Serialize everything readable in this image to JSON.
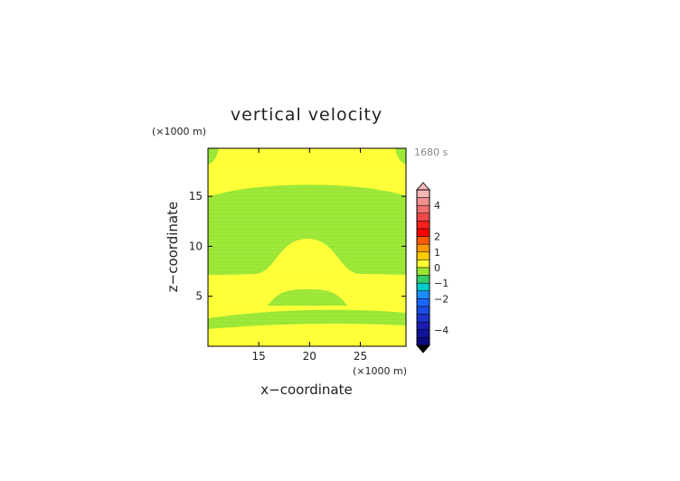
{
  "chart_data": {
    "type": "heatmap",
    "title": "vertical velocity",
    "time_label": "1680 s",
    "xlabel": "x−coordinate",
    "ylabel": "z−coordinate",
    "x_unit": "(×1000 m)",
    "y_unit": "(×1000 m)",
    "xlim": [
      10,
      29.5
    ],
    "ylim": [
      0,
      19.8
    ],
    "x_ticks": [
      15,
      20,
      25
    ],
    "y_ticks": [
      5,
      10,
      15
    ],
    "grid": false,
    "legend_placement": "right",
    "colorbar": {
      "tick_labels": [
        {
          "label": "4",
          "value": 4
        },
        {
          "label": "2",
          "value": 2
        },
        {
          "label": "1",
          "value": 1
        },
        {
          "label": "0",
          "value": 0
        },
        {
          "label": "−1",
          "value": -1
        },
        {
          "label": "−2",
          "value": -2
        },
        {
          "label": "−4",
          "value": -4
        }
      ],
      "levels": [
        {
          "from": 4.5,
          "to": 5.0,
          "color": "#f7b7b7"
        },
        {
          "from": 4.0,
          "to": 4.5,
          "color": "#f29090"
        },
        {
          "from": 3.5,
          "to": 4.0,
          "color": "#f07070"
        },
        {
          "from": 3.0,
          "to": 3.5,
          "color": "#f04848"
        },
        {
          "from": 2.5,
          "to": 3.0,
          "color": "#ff2020"
        },
        {
          "from": 2.0,
          "to": 2.5,
          "color": "#ff0000"
        },
        {
          "from": 1.5,
          "to": 2.0,
          "color": "#ff5a00"
        },
        {
          "from": 1.0,
          "to": 1.5,
          "color": "#ff9900"
        },
        {
          "from": 0.5,
          "to": 1.0,
          "color": "#ffcc00"
        },
        {
          "from": 0.0,
          "to": 0.5,
          "color": "#ffff33"
        },
        {
          "from": -0.5,
          "to": 0.0,
          "color": "#99e632"
        },
        {
          "from": -1.0,
          "to": -0.5,
          "color": "#33cc66"
        },
        {
          "from": -1.5,
          "to": -1.0,
          "color": "#00cccc"
        },
        {
          "from": -2.0,
          "to": -1.5,
          "color": "#1a8cff"
        },
        {
          "from": -2.5,
          "to": -2.0,
          "color": "#1a66ff"
        },
        {
          "from": -3.0,
          "to": -2.5,
          "color": "#1a4de6"
        },
        {
          "from": -3.5,
          "to": -3.0,
          "color": "#1a33cc"
        },
        {
          "from": -4.0,
          "to": -3.5,
          "color": "#1a1ab3"
        },
        {
          "from": -4.5,
          "to": -4.0,
          "color": "#111199"
        },
        {
          "from": -5.0,
          "to": -4.5,
          "color": "#0a0a80"
        }
      ]
    },
    "field_colors": {
      "positive_0_to_0.5": "#ffff33",
      "negative_-0.5_to_0": "#99e632"
    },
    "regions": [
      {
        "level": "0 to 0.5",
        "z_range": [
          0,
          1.2
        ],
        "x_range": [
          10,
          29.5
        ]
      },
      {
        "level": "-0.5 to 0",
        "z_range": [
          1.2,
          2.8
        ],
        "x_range": [
          10,
          29.5
        ]
      },
      {
        "level": "0 to 0.5",
        "z_range": [
          2.8,
          4.5
        ],
        "x_range": [
          10,
          29.5
        ]
      },
      {
        "level": "-0.5 to 0",
        "z_range": [
          4.5,
          6.0
        ],
        "x_range": [
          17,
          23
        ]
      },
      {
        "level": "0 to 0.5",
        "z_range": [
          6.0,
          7.5
        ],
        "x_range": [
          10,
          29.5
        ]
      },
      {
        "level": "0 to 0.5",
        "z_range": [
          7.5,
          10.8
        ],
        "x_range": [
          16,
          24
        ]
      },
      {
        "level": "-0.5 to 0",
        "z_range": [
          7.5,
          15.2
        ],
        "x_range": [
          10,
          29.5
        ]
      },
      {
        "level": "-0.5 to 0",
        "z_range": [
          15.2,
          16.5
        ],
        "x_range": [
          13,
          27
        ]
      },
      {
        "level": "0 to 0.5",
        "z_range": [
          16.5,
          19.8
        ],
        "x_range": [
          10,
          29.5
        ]
      },
      {
        "level": "-0.5 to 0",
        "z_range": [
          18.5,
          19.8
        ],
        "x_range": [
          10,
          10.8
        ]
      },
      {
        "level": "-0.5 to 0",
        "z_range": [
          18.5,
          19.8
        ],
        "x_range": [
          28.8,
          29.5
        ]
      }
    ]
  }
}
